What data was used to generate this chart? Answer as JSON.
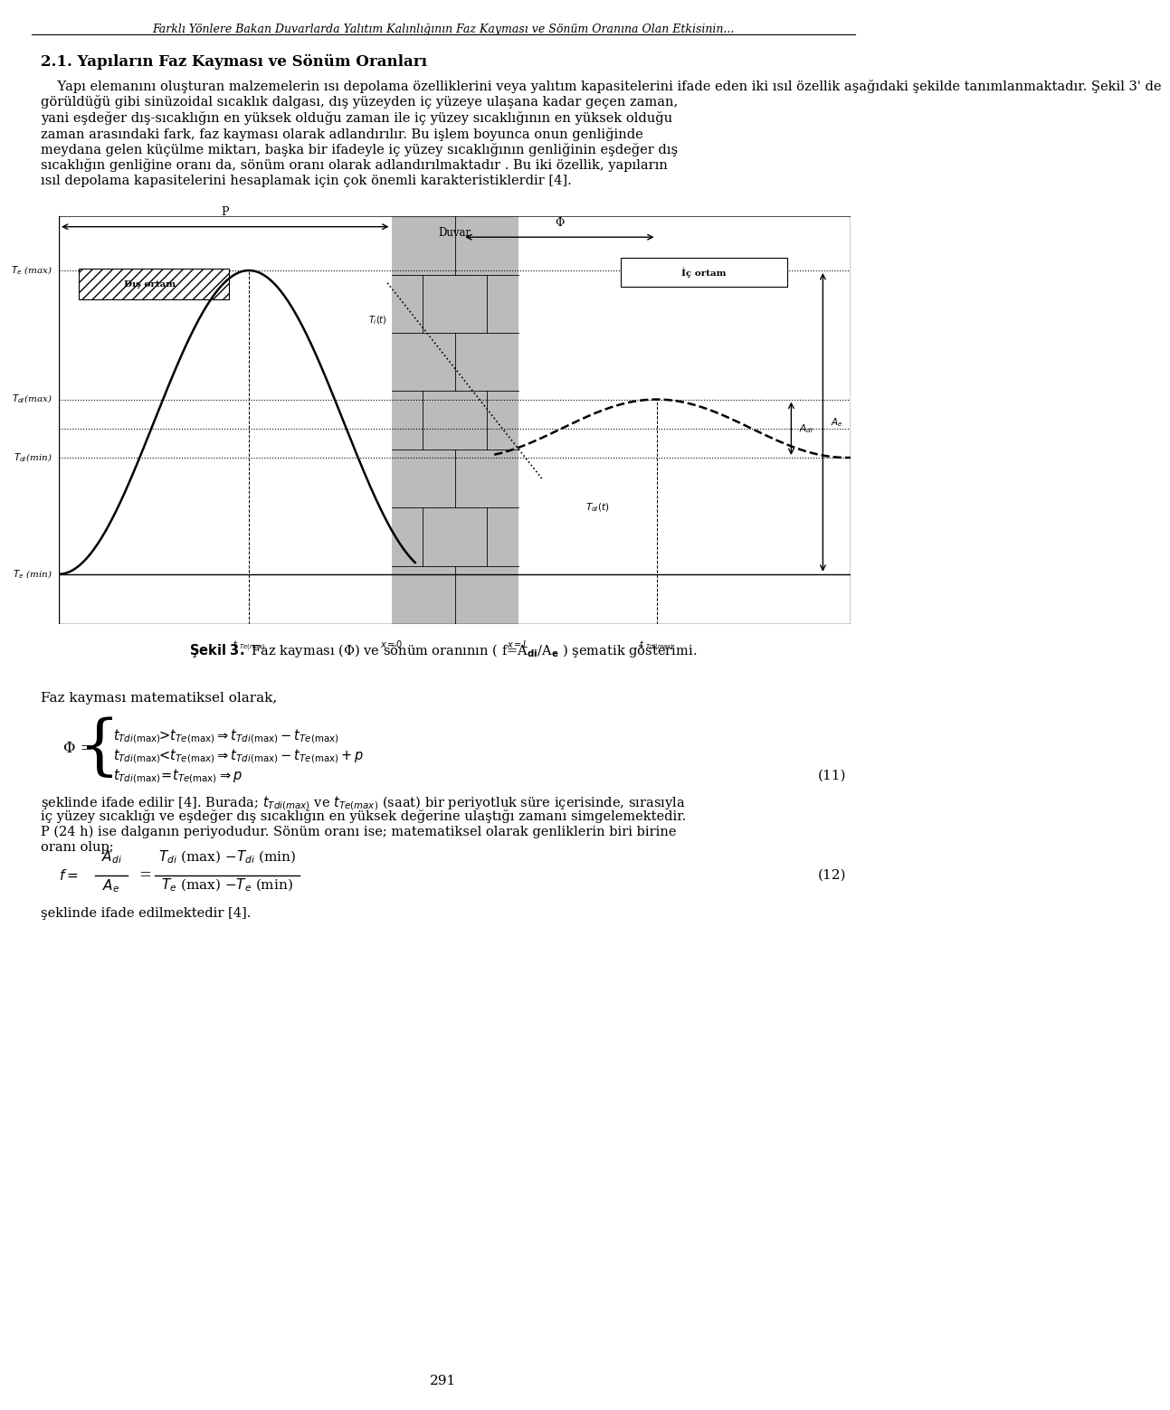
{
  "title_header": "Farklı Yönlere Bakan Duvarlarda Yalıtım Kalınlığının Faz Kayması ve Sönüm Oranına Olan Etkisinin...",
  "section_title": "2.1. Yapıların Faz Kayması ve Sönüm Oranları",
  "paragraph1_lines": [
    "    Yapı elemanını oluşturan malzemelerin ısı depolama özelliklerini veya yalıtım kapasitelerini ifade eden iki ısıl özellik aşağıdaki şekilde tanımlanmaktadır. Şekil 3' de",
    "görüldüğü gibi sinüzoidal sıcaklık dalgası, dış yüzeyden iç yüzeye ulaşana kadar geçen zaman,",
    "yani eşdeğer dış-sıcaklığın en yüksek olduğu zaman ile iç yüzey sıcaklığının en yüksek olduğu",
    "zaman arasındaki fark, faz kayması olarak adlandırılır. Bu işlem boyunca onun genliğinde",
    "meydana gelen küçülme miktarı, başka bir ifadeyle iç yüzey sıcaklığının genliğinin eşdeğer dış",
    "sıcaklığın genliğine oranı da, sönüm oranı olarak adlandırılmaktadır . Bu iki özellik, yapıların",
    "ısıl depolama kapasitelerini hesaplamak için çok önemli karakteristiklerdir [4]."
  ],
  "faz_text": "Faz kayması matematiksel olarak,",
  "eq11_label": "(11)",
  "eq12_label": "(12)",
  "text_after_eq11_lines": [
    "şeklinde ifade edilir [4]. Burada; $t_{Tdi(max)}$ ve $t_{Te(max)}$ (saat) bir periyotluk süre içerisinde, sırasıyla",
    "iç yüzey sıcaklığı ve eşdeğer dış sıcaklığın en yüksek değerine ulaştığı zamanı simgelemektedir.",
    "P (24 h) ise dalganın periyodudur. Sönüm oranı ise; matematiksel olarak genliklerin biri birine",
    "oranı olup;"
  ],
  "text_after_eq12": "şeklinde ifade edilmektedir [4].",
  "page_number": "291",
  "background_color": "#ffffff",
  "text_color": "#000000"
}
